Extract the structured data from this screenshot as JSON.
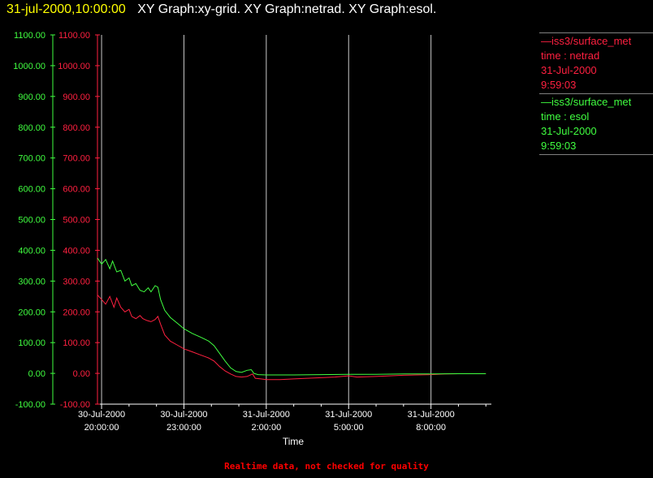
{
  "header": {
    "timestamp": "31-jul-2000,10:00:00",
    "graphs": "XY Graph:xy-grid.  XY Graph:netrad.  XY Graph:esol."
  },
  "legend": [
    {
      "lines": [
        "—iss3/surface_met",
        "time : netrad",
        "31-Jul-2000",
        "9:59:03"
      ],
      "color": "#ff2040"
    },
    {
      "lines": [
        "—iss3/surface_met",
        "time : esol",
        "31-Jul-2000",
        "9:59:03"
      ],
      "color": "#40ff40"
    }
  ],
  "footer": "Realtime data, not checked for quality",
  "chart_data": {
    "type": "line",
    "xlabel": "Time",
    "x_ticks": [
      {
        "hour": 0,
        "date": "30-Jul-2000",
        "time": "20:00:00"
      },
      {
        "hour": 3,
        "date": "30-Jul-2000",
        "time": "23:00:00"
      },
      {
        "hour": 6,
        "date": "31-Jul-2000",
        "time": "2:00:00"
      },
      {
        "hour": 9,
        "date": "31-Jul-2000",
        "time": "5:00:00"
      },
      {
        "hour": 12,
        "date": "31-Jul-2000",
        "time": "8:00:00"
      }
    ],
    "xlim": [
      -0.15,
      14.2
    ],
    "ylim": [
      -100,
      1100
    ],
    "y_ticks": [
      -100,
      0,
      100,
      200,
      300,
      400,
      500,
      600,
      700,
      800,
      900,
      1000,
      1100
    ],
    "y_tick_labels": [
      "-100.00",
      "0.00",
      "100.00",
      "200.00",
      "300.00",
      "400.00",
      "500.00",
      "600.00",
      "700.00",
      "800.00",
      "900.00",
      "1000.00",
      "1100.00"
    ],
    "grid": "vertical",
    "series": [
      {
        "name": "netrad",
        "color": "#ff2040",
        "points": [
          [
            -0.15,
            255
          ],
          [
            0.0,
            240
          ],
          [
            0.15,
            225
          ],
          [
            0.3,
            250
          ],
          [
            0.45,
            215
          ],
          [
            0.55,
            245
          ],
          [
            0.7,
            215
          ],
          [
            0.85,
            200
          ],
          [
            1.0,
            208
          ],
          [
            1.1,
            185
          ],
          [
            1.25,
            178
          ],
          [
            1.4,
            188
          ],
          [
            1.5,
            178
          ],
          [
            1.65,
            172
          ],
          [
            1.8,
            168
          ],
          [
            1.95,
            175
          ],
          [
            2.05,
            185
          ],
          [
            2.15,
            160
          ],
          [
            2.3,
            125
          ],
          [
            2.5,
            105
          ],
          [
            2.8,
            90
          ],
          [
            3.0,
            80
          ],
          [
            3.3,
            70
          ],
          [
            3.6,
            60
          ],
          [
            3.9,
            50
          ],
          [
            4.1,
            40
          ],
          [
            4.3,
            22
          ],
          [
            4.5,
            8
          ],
          [
            4.7,
            -2
          ],
          [
            4.9,
            -10
          ],
          [
            5.1,
            -12
          ],
          [
            5.3,
            -10
          ],
          [
            5.5,
            -2
          ],
          [
            5.6,
            -16
          ],
          [
            5.8,
            -18
          ],
          [
            6.0,
            -20
          ],
          [
            6.5,
            -20
          ],
          [
            7.0,
            -18
          ],
          [
            7.5,
            -16
          ],
          [
            8.0,
            -14
          ],
          [
            8.5,
            -12
          ],
          [
            9.0,
            -8
          ],
          [
            9.3,
            -12
          ],
          [
            10.0,
            -10
          ],
          [
            10.5,
            -8
          ],
          [
            11.0,
            -6
          ],
          [
            11.5,
            -5
          ],
          [
            12.0,
            -4
          ],
          [
            12.5,
            -2
          ],
          [
            13.0,
            -1
          ],
          [
            14.0,
            -1
          ]
        ]
      },
      {
        "name": "esol",
        "color": "#40ff40",
        "points": [
          [
            -0.15,
            375
          ],
          [
            0.0,
            355
          ],
          [
            0.15,
            370
          ],
          [
            0.3,
            340
          ],
          [
            0.4,
            365
          ],
          [
            0.55,
            330
          ],
          [
            0.7,
            335
          ],
          [
            0.85,
            300
          ],
          [
            1.0,
            310
          ],
          [
            1.1,
            285
          ],
          [
            1.25,
            292
          ],
          [
            1.4,
            270
          ],
          [
            1.55,
            265
          ],
          [
            1.7,
            278
          ],
          [
            1.8,
            265
          ],
          [
            1.95,
            285
          ],
          [
            2.05,
            280
          ],
          [
            2.15,
            240
          ],
          [
            2.3,
            205
          ],
          [
            2.5,
            182
          ],
          [
            2.8,
            160
          ],
          [
            3.0,
            145
          ],
          [
            3.3,
            130
          ],
          [
            3.6,
            118
          ],
          [
            3.9,
            105
          ],
          [
            4.1,
            90
          ],
          [
            4.3,
            65
          ],
          [
            4.5,
            40
          ],
          [
            4.7,
            18
          ],
          [
            4.9,
            6
          ],
          [
            5.1,
            3
          ],
          [
            5.3,
            10
          ],
          [
            5.45,
            12
          ],
          [
            5.55,
            0
          ],
          [
            5.7,
            -4
          ],
          [
            6.0,
            -5
          ],
          [
            7.0,
            -5
          ],
          [
            8.0,
            -4
          ],
          [
            9.0,
            -3
          ],
          [
            10.0,
            -3
          ],
          [
            11.0,
            -2
          ],
          [
            12.0,
            -2
          ],
          [
            13.0,
            -1
          ],
          [
            14.0,
            -1
          ]
        ]
      }
    ]
  }
}
